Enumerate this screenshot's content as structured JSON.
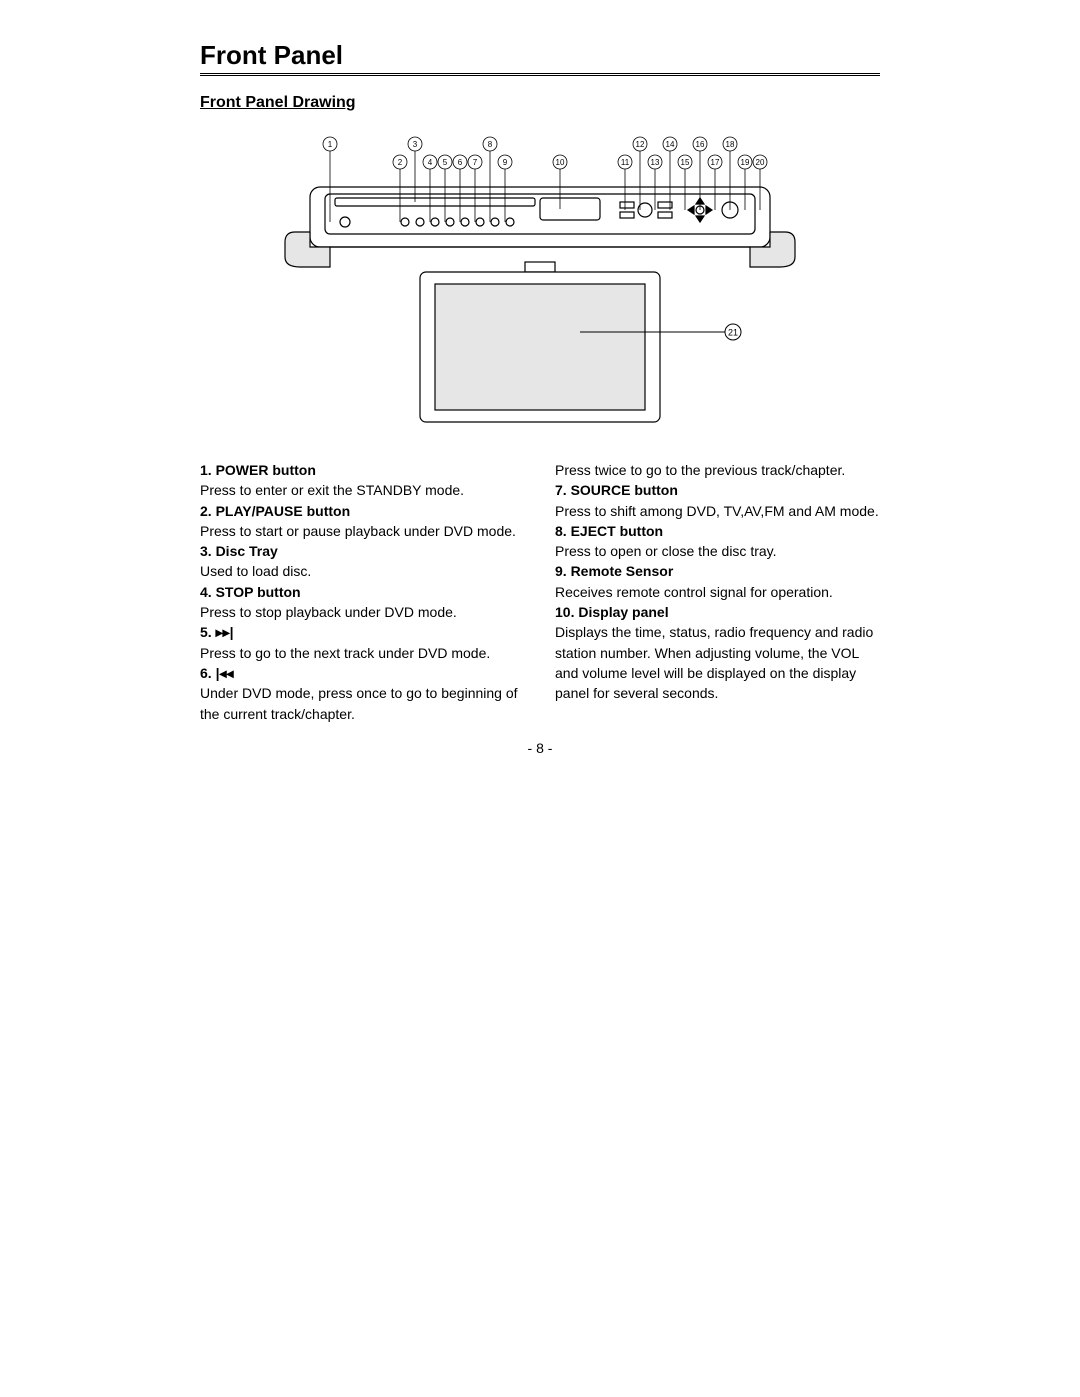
{
  "header": {
    "title": "Front Panel",
    "subtitle": "Front Panel Drawing"
  },
  "diagram": {
    "callout_label": "21",
    "top_callouts": [
      "1",
      "2",
      "3",
      "4",
      "5",
      "6",
      "7",
      "8",
      "9",
      "10",
      "11",
      "12",
      "13",
      "14",
      "15",
      "16",
      "17",
      "18",
      "19",
      "20"
    ],
    "callout_positions_x": [
      50,
      120,
      135,
      150,
      165,
      180,
      195,
      210,
      225,
      280,
      345,
      360,
      375,
      390,
      405,
      420,
      435,
      450,
      465,
      480
    ],
    "stroke_color": "#000000",
    "fill_color": "#ffffff",
    "shade_color": "#e6e6e6"
  },
  "left_column": [
    {
      "title": "1. POWER button",
      "body": "Press to enter or exit the STANDBY mode."
    },
    {
      "title": "2. PLAY/PAUSE button",
      "body": "Press to start or pause playback under DVD mode."
    },
    {
      "title": "3. Disc Tray",
      "body": "Used to load disc."
    },
    {
      "title": "4. STOP button",
      "body": "Press to stop playback under DVD mode."
    },
    {
      "title": "5. ▸▸|",
      "body": "Press to go to the next track under DVD mode."
    },
    {
      "title": "6. |◂◂",
      "body": "Under DVD mode, press once to go to beginning of the current track/chapter."
    }
  ],
  "right_column_top": "Press twice to go to the previous track/chapter.",
  "right_column": [
    {
      "title": "7. SOURCE button",
      "body": "Press to shift among DVD, TV,AV,FM and AM mode."
    },
    {
      "title": "8. EJECT button",
      "body": "Press to open or close the disc tray."
    },
    {
      "title": "9.  Remote Sensor",
      "body": "Receives remote control signal for operation."
    },
    {
      "title": "10. Display panel",
      "body": "Displays the time, status, radio frequency and radio station number. When adjusting volume, the VOL and volume level will be displayed on the display panel for several seconds."
    }
  ],
  "page_number": "- 8 -"
}
